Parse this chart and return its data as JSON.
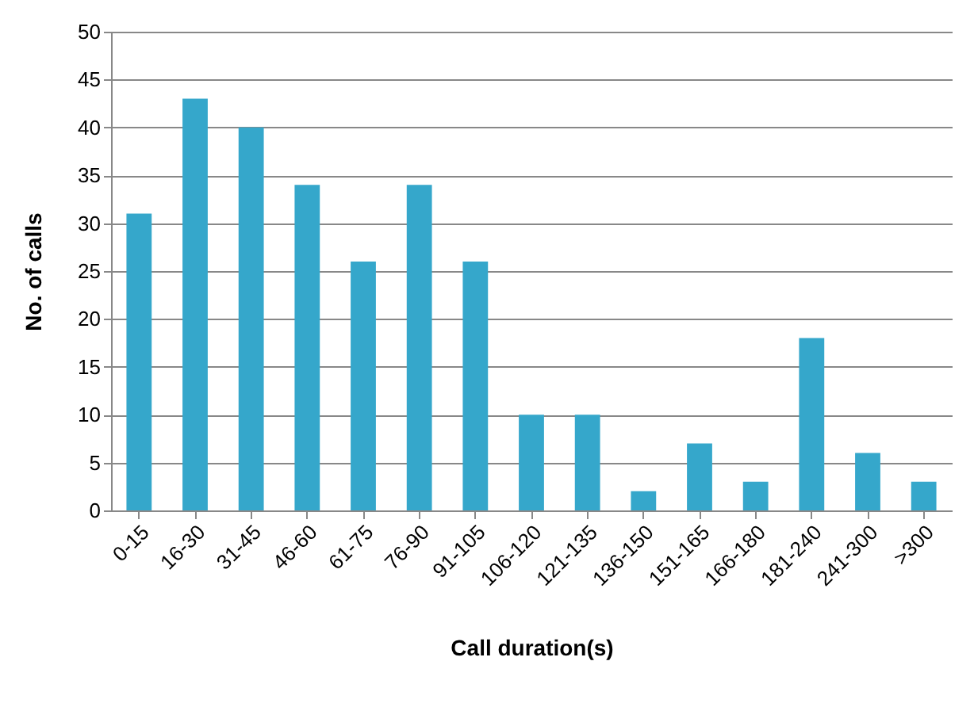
{
  "chart_data": {
    "type": "bar",
    "xlabel": "Call duration(s)",
    "ylabel": "No. of calls",
    "categories": [
      "0-15",
      "16-30",
      "31-45",
      "46-60",
      "61-75",
      "76-90",
      "91-105",
      "106-120",
      "121-135",
      "136-150",
      "151-165",
      "166-180",
      "181-240",
      "241-300",
      ">300"
    ],
    "values": [
      31,
      43,
      40,
      34,
      26,
      34,
      26,
      10,
      10,
      2,
      7,
      3,
      18,
      6,
      3
    ],
    "color": "#35a7cb",
    "ylim": [
      0,
      50
    ],
    "yticks": [
      0,
      5,
      10,
      15,
      20,
      25,
      30,
      35,
      40,
      45,
      50
    ],
    "grid": "y"
  }
}
